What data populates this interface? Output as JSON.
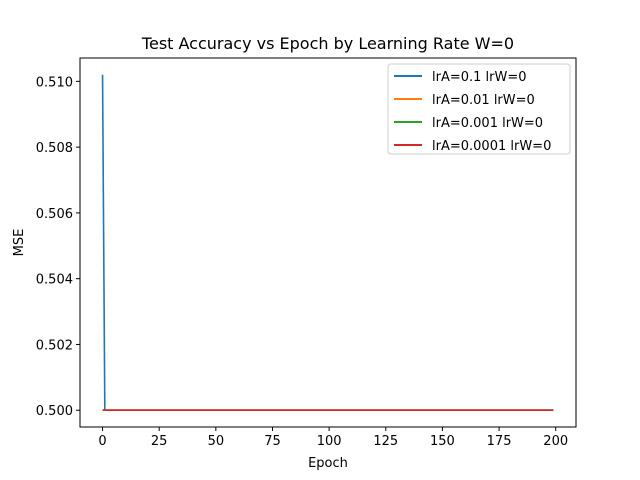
{
  "chart_data": {
    "type": "line",
    "title": "Test Accuracy vs Epoch by Learning Rate W=0",
    "xlabel": "Epoch",
    "ylabel": "MSE",
    "xlim": [
      -9.95,
      208.95
    ],
    "ylim": [
      0.49949,
      0.51071
    ],
    "xticks": [
      0,
      25,
      50,
      75,
      100,
      125,
      150,
      175,
      200
    ],
    "yticks": [
      0.5,
      0.502,
      0.504,
      0.506,
      0.508,
      0.51
    ],
    "ytick_labels": [
      "0.500",
      "0.502",
      "0.504",
      "0.506",
      "0.508",
      "0.510"
    ],
    "grid": false,
    "legend_position": "top-right",
    "series": [
      {
        "name": "lrA=0.1 lrW=0",
        "color": "#1f77b4",
        "x": [
          0,
          1,
          2,
          199
        ],
        "y": [
          0.5102,
          0.5,
          0.5,
          0.5
        ]
      },
      {
        "name": "lrA=0.01 lrW=0",
        "color": "#ff7f0e",
        "x": [
          0,
          199
        ],
        "y": [
          0.5,
          0.5
        ]
      },
      {
        "name": "lrA=0.001 lrW=0",
        "color": "#2ca02c",
        "x": [
          0,
          199
        ],
        "y": [
          0.5,
          0.5
        ]
      },
      {
        "name": "lrA=0.0001 lrW=0",
        "color": "#d62728",
        "x": [
          0,
          199
        ],
        "y": [
          0.5,
          0.5
        ]
      }
    ]
  }
}
